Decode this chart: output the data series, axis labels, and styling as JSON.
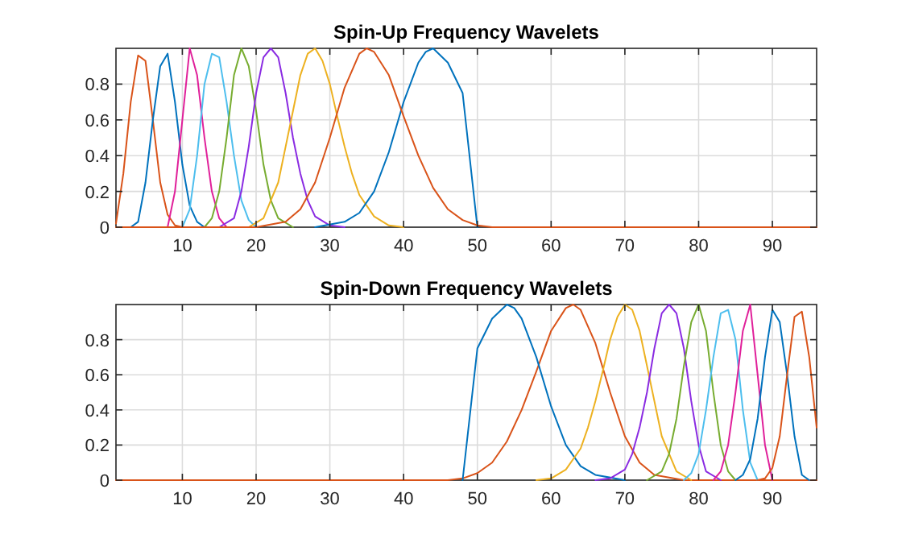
{
  "chart_data": [
    {
      "type": "line",
      "title": "Spin-Up Frequency Wavelets",
      "xlim": [
        1,
        96
      ],
      "ylim": [
        0,
        1
      ],
      "xticks": [
        10,
        20,
        30,
        40,
        50,
        60,
        70,
        80,
        90
      ],
      "yticks": [
        0,
        0.2,
        0.4,
        0.6,
        0.8
      ],
      "grid": true,
      "series": [
        {
          "color": "#d95319",
          "x": [
            1,
            2,
            3,
            4,
            5,
            6,
            7,
            8,
            9,
            10
          ],
          "values": [
            0.02,
            0.3,
            0.7,
            0.96,
            0.93,
            0.6,
            0.25,
            0.07,
            0.01,
            0
          ]
        },
        {
          "color": "#0072bd",
          "x": [
            3,
            4,
            5,
            6,
            7,
            8,
            9,
            10,
            11,
            12,
            13
          ],
          "values": [
            0,
            0.03,
            0.25,
            0.6,
            0.9,
            0.97,
            0.7,
            0.35,
            0.12,
            0.03,
            0
          ]
        },
        {
          "color": "#e0209a",
          "x": [
            8,
            9,
            10,
            11,
            12,
            13,
            14,
            15,
            16
          ],
          "values": [
            0,
            0.2,
            0.6,
            1.0,
            0.85,
            0.5,
            0.2,
            0.05,
            0
          ]
        },
        {
          "color": "#4dbeee",
          "x": [
            10,
            11,
            12,
            13,
            14,
            15,
            16,
            17,
            18,
            19,
            20
          ],
          "values": [
            0,
            0.1,
            0.4,
            0.8,
            0.97,
            0.95,
            0.7,
            0.4,
            0.15,
            0.04,
            0
          ]
        },
        {
          "color": "#77ac30",
          "x": [
            13,
            14,
            15,
            16,
            17,
            18,
            19,
            20,
            21,
            22,
            23,
            25
          ],
          "values": [
            0,
            0.05,
            0.2,
            0.5,
            0.85,
            1.0,
            0.9,
            0.65,
            0.35,
            0.15,
            0.05,
            0
          ]
        },
        {
          "color": "#8a2be2",
          "x": [
            15,
            17,
            18,
            19,
            20,
            21,
            22,
            23,
            24,
            25,
            26,
            27,
            28,
            30,
            32
          ],
          "values": [
            0,
            0.05,
            0.2,
            0.45,
            0.75,
            0.95,
            1.0,
            0.95,
            0.75,
            0.5,
            0.3,
            0.15,
            0.06,
            0.01,
            0
          ]
        },
        {
          "color": "#edb120",
          "x": [
            19,
            21,
            23,
            24,
            25,
            26,
            27,
            28,
            29,
            30,
            31,
            32,
            33,
            34,
            36,
            38,
            40
          ],
          "values": [
            0,
            0.05,
            0.25,
            0.45,
            0.65,
            0.85,
            0.97,
            1.0,
            0.93,
            0.8,
            0.62,
            0.45,
            0.3,
            0.18,
            0.06,
            0.01,
            0
          ]
        },
        {
          "color": "#0072bd",
          "x": [
            28,
            32,
            34,
            36,
            38,
            40,
            42,
            43,
            44,
            46,
            48,
            50
          ],
          "values": [
            0,
            0.03,
            0.08,
            0.2,
            0.42,
            0.7,
            0.92,
            0.98,
            1.0,
            0.92,
            0.75,
            0
          ]
        },
        {
          "color": "#d95319",
          "x": [
            1,
            20,
            24,
            26,
            28,
            30,
            32,
            34,
            35,
            36,
            38,
            40,
            42,
            44,
            46,
            48,
            50,
            52,
            96
          ],
          "values": [
            0,
            0,
            0.03,
            0.1,
            0.25,
            0.5,
            0.78,
            0.97,
            1.0,
            0.98,
            0.85,
            0.62,
            0.4,
            0.22,
            0.1,
            0.04,
            0.01,
            0,
            0
          ]
        }
      ]
    },
    {
      "type": "line",
      "title": "Spin-Down Frequency Wavelets",
      "xlim": [
        1,
        96
      ],
      "ylim": [
        0,
        1
      ],
      "xticks": [
        10,
        20,
        30,
        40,
        50,
        60,
        70,
        80,
        90
      ],
      "yticks": [
        0,
        0.2,
        0.4,
        0.6,
        0.8
      ],
      "grid": true,
      "series": [
        {
          "color": "#d95319",
          "x": [
            1,
            46,
            48,
            50,
            52,
            54,
            56,
            58,
            60,
            62,
            63,
            64,
            66,
            68,
            70,
            72,
            74,
            78,
            96
          ],
          "values": [
            0,
            0,
            0.01,
            0.04,
            0.1,
            0.22,
            0.4,
            0.62,
            0.85,
            0.98,
            1.0,
            0.97,
            0.78,
            0.5,
            0.25,
            0.1,
            0.03,
            0,
            0
          ]
        },
        {
          "color": "#0072bd",
          "x": [
            48,
            50,
            52,
            54,
            55,
            56,
            58,
            60,
            62,
            64,
            66,
            70
          ],
          "values": [
            0,
            0.75,
            0.92,
            1.0,
            0.98,
            0.92,
            0.7,
            0.42,
            0.2,
            0.08,
            0.03,
            0
          ]
        },
        {
          "color": "#edb120",
          "x": [
            58,
            60,
            62,
            64,
            65,
            66,
            67,
            68,
            69,
            70,
            71,
            72,
            73,
            74,
            75,
            77,
            79
          ],
          "values": [
            0,
            0.01,
            0.06,
            0.18,
            0.3,
            0.45,
            0.62,
            0.8,
            0.93,
            1.0,
            0.97,
            0.85,
            0.65,
            0.45,
            0.25,
            0.05,
            0
          ]
        },
        {
          "color": "#8a2be2",
          "x": [
            66,
            68,
            70,
            71,
            72,
            73,
            74,
            75,
            76,
            77,
            78,
            79,
            80,
            81,
            83
          ],
          "values": [
            0,
            0.01,
            0.06,
            0.15,
            0.3,
            0.5,
            0.75,
            0.95,
            1.0,
            0.95,
            0.75,
            0.45,
            0.2,
            0.05,
            0
          ]
        },
        {
          "color": "#77ac30",
          "x": [
            73,
            75,
            76,
            77,
            78,
            79,
            80,
            81,
            82,
            83,
            84,
            85
          ],
          "values": [
            0,
            0.05,
            0.15,
            0.35,
            0.65,
            0.9,
            1.0,
            0.85,
            0.5,
            0.2,
            0.05,
            0
          ]
        },
        {
          "color": "#4dbeee",
          "x": [
            78,
            79,
            80,
            81,
            82,
            83,
            84,
            85,
            86,
            87,
            88
          ],
          "values": [
            0,
            0.04,
            0.15,
            0.4,
            0.7,
            0.95,
            0.97,
            0.8,
            0.4,
            0.1,
            0
          ]
        },
        {
          "color": "#e0209a",
          "x": [
            82,
            83,
            84,
            85,
            86,
            87,
            88,
            89,
            90
          ],
          "values": [
            0,
            0.05,
            0.2,
            0.5,
            0.85,
            1.0,
            0.6,
            0.2,
            0
          ]
        },
        {
          "color": "#0072bd",
          "x": [
            85,
            86,
            87,
            88,
            89,
            90,
            91,
            92,
            93,
            94,
            95
          ],
          "values": [
            0,
            0.03,
            0.12,
            0.35,
            0.7,
            0.97,
            0.9,
            0.6,
            0.25,
            0.03,
            0
          ]
        },
        {
          "color": "#d95319",
          "x": [
            88,
            89,
            90,
            91,
            92,
            93,
            94,
            95,
            96
          ],
          "values": [
            0,
            0.01,
            0.07,
            0.25,
            0.6,
            0.93,
            0.96,
            0.7,
            0.3
          ]
        }
      ]
    }
  ]
}
